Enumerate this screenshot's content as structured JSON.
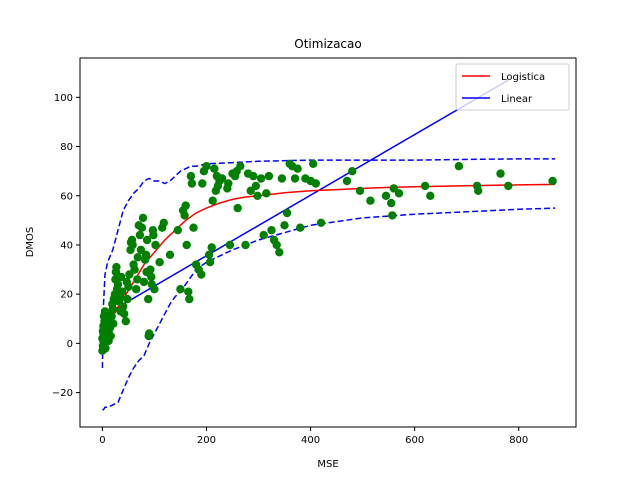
{
  "chart_data": {
    "type": "scatter",
    "title": "Otimizacao",
    "xlabel": "MSE",
    "ylabel": "DMOS",
    "xlim": [
      -43,
      910
    ],
    "ylim": [
      -34,
      116
    ],
    "xticks": [
      0,
      200,
      400,
      600,
      800
    ],
    "yticks": [
      -20,
      0,
      20,
      40,
      60,
      80,
      100
    ],
    "legend_position": "top-right",
    "legend": [
      {
        "label": "Logistica",
        "color": "#ff0000",
        "style": "solid"
      },
      {
        "label": "Linear",
        "color": "#0000ff",
        "style": "solid"
      }
    ],
    "colors": {
      "points": "#008000",
      "logistic": "#ff0000",
      "linear": "#0000ff",
      "bounds": "#0000ff"
    },
    "scatter_points": [
      [
        0,
        -3
      ],
      [
        1,
        -1
      ],
      [
        2,
        1
      ],
      [
        3,
        3
      ],
      [
        1,
        5
      ],
      [
        2,
        7
      ],
      [
        4,
        9
      ],
      [
        3,
        11
      ],
      [
        5,
        13
      ],
      [
        0,
        2
      ],
      [
        2,
        4
      ],
      [
        6,
        6
      ],
      [
        7,
        8
      ],
      [
        8,
        10
      ],
      [
        4,
        0
      ],
      [
        6,
        -2
      ],
      [
        9,
        2
      ],
      [
        10,
        5
      ],
      [
        11,
        12
      ],
      [
        12,
        1
      ],
      [
        14,
        6
      ],
      [
        15,
        9
      ],
      [
        16,
        3
      ],
      [
        18,
        11
      ],
      [
        20,
        14
      ],
      [
        19,
        16
      ],
      [
        21,
        8
      ],
      [
        22,
        18
      ],
      [
        24,
        20
      ],
      [
        25,
        26
      ],
      [
        26,
        29
      ],
      [
        27,
        31
      ],
      [
        28,
        22
      ],
      [
        30,
        24
      ],
      [
        32,
        17
      ],
      [
        34,
        19
      ],
      [
        35,
        13
      ],
      [
        36,
        27
      ],
      [
        38,
        21
      ],
      [
        40,
        15
      ],
      [
        42,
        12
      ],
      [
        45,
        9
      ],
      [
        47,
        25
      ],
      [
        48,
        18
      ],
      [
        50,
        23
      ],
      [
        52,
        28
      ],
      [
        54,
        38
      ],
      [
        55,
        41
      ],
      [
        57,
        42
      ],
      [
        58,
        40
      ],
      [
        60,
        32
      ],
      [
        62,
        30
      ],
      [
        65,
        22
      ],
      [
        67,
        26
      ],
      [
        68,
        35
      ],
      [
        70,
        48
      ],
      [
        72,
        44
      ],
      [
        74,
        38
      ],
      [
        76,
        47
      ],
      [
        78,
        51
      ],
      [
        80,
        25
      ],
      [
        82,
        34
      ],
      [
        84,
        36
      ],
      [
        85,
        29
      ],
      [
        86,
        42
      ],
      [
        88,
        18
      ],
      [
        89,
        3
      ],
      [
        90,
        4
      ],
      [
        92,
        30
      ],
      [
        94,
        27
      ],
      [
        95,
        24
      ],
      [
        97,
        46
      ],
      [
        98,
        44
      ],
      [
        100,
        22
      ],
      [
        102,
        40
      ],
      [
        110,
        33
      ],
      [
        115,
        47
      ],
      [
        118,
        49
      ],
      [
        130,
        36
      ],
      [
        145,
        46
      ],
      [
        150,
        22
      ],
      [
        155,
        54
      ],
      [
        158,
        52
      ],
      [
        160,
        56
      ],
      [
        162,
        40
      ],
      [
        165,
        21
      ],
      [
        167,
        18
      ],
      [
        170,
        68
      ],
      [
        172,
        65
      ],
      [
        175,
        47
      ],
      [
        180,
        32
      ],
      [
        185,
        30
      ],
      [
        190,
        28
      ],
      [
        192,
        65
      ],
      [
        195,
        70
      ],
      [
        200,
        72
      ],
      [
        205,
        36
      ],
      [
        207,
        33
      ],
      [
        210,
        39
      ],
      [
        212,
        58
      ],
      [
        215,
        71
      ],
      [
        218,
        62
      ],
      [
        220,
        68
      ],
      [
        222,
        64
      ],
      [
        225,
        66
      ],
      [
        230,
        67
      ],
      [
        240,
        63
      ],
      [
        242,
        65
      ],
      [
        245,
        40
      ],
      [
        250,
        69
      ],
      [
        255,
        68
      ],
      [
        258,
        70
      ],
      [
        260,
        55
      ],
      [
        265,
        72
      ],
      [
        275,
        40
      ],
      [
        280,
        69
      ],
      [
        285,
        62
      ],
      [
        290,
        68
      ],
      [
        295,
        64
      ],
      [
        298,
        60
      ],
      [
        305,
        67
      ],
      [
        310,
        44
      ],
      [
        315,
        61
      ],
      [
        320,
        68
      ],
      [
        325,
        46
      ],
      [
        330,
        42
      ],
      [
        335,
        40
      ],
      [
        340,
        37
      ],
      [
        345,
        67
      ],
      [
        350,
        48
      ],
      [
        355,
        53
      ],
      [
        360,
        73
      ],
      [
        365,
        72
      ],
      [
        370,
        67
      ],
      [
        375,
        71
      ],
      [
        380,
        47
      ],
      [
        390,
        67
      ],
      [
        400,
        66
      ],
      [
        405,
        73
      ],
      [
        410,
        65
      ],
      [
        420,
        49
      ],
      [
        470,
        66
      ],
      [
        480,
        70
      ],
      [
        495,
        62
      ],
      [
        515,
        58
      ],
      [
        545,
        60
      ],
      [
        555,
        57
      ],
      [
        557,
        52
      ],
      [
        560,
        63
      ],
      [
        570,
        61
      ],
      [
        620,
        64
      ],
      [
        630,
        60
      ],
      [
        685,
        72
      ],
      [
        720,
        64
      ],
      [
        722,
        62
      ],
      [
        765,
        69
      ],
      [
        780,
        64
      ],
      [
        865,
        66
      ]
    ],
    "logistic_fit": {
      "x": [
        0,
        20,
        40,
        60,
        80,
        100,
        120,
        140,
        160,
        180,
        200,
        225,
        250,
        275,
        300,
        350,
        400,
        450,
        500,
        550,
        600,
        700,
        800,
        870
      ],
      "y": [
        2,
        11,
        18,
        25,
        32,
        37,
        42,
        46,
        50,
        53,
        55,
        57,
        58.5,
        59.5,
        60,
        61.2,
        62,
        62.5,
        63,
        63.4,
        63.7,
        64.1,
        64.4,
        64.6
      ]
    },
    "linear_fit": {
      "x": [
        0,
        780
      ],
      "y": [
        11,
        107
      ]
    },
    "upper_bound": {
      "x": [
        0,
        2,
        5,
        10,
        20,
        30,
        40,
        50,
        60,
        70,
        80,
        90,
        100,
        110,
        120,
        130,
        140,
        150,
        160,
        170,
        180,
        200,
        250,
        300,
        400,
        500,
        600,
        700,
        800,
        870
      ],
      "y": [
        -10,
        15,
        28,
        33,
        38,
        46,
        54,
        58,
        61,
        63,
        66,
        67,
        66,
        66,
        65,
        66,
        68,
        70,
        71,
        72,
        72,
        73,
        73.5,
        74,
        74.5,
        74.5,
        74.5,
        74.8,
        75,
        75
      ]
    },
    "lower_bound": {
      "x": [
        0,
        2,
        5,
        10,
        20,
        30,
        40,
        50,
        60,
        70,
        80,
        90,
        100,
        110,
        120,
        130,
        140,
        150,
        160,
        170,
        180,
        200,
        250,
        300,
        400,
        500,
        600,
        700,
        800,
        870
      ],
      "y": [
        -27,
        -27,
        -26,
        -26,
        -25,
        -24,
        -19,
        -14,
        -10,
        -7,
        -5,
        0,
        4,
        8,
        12,
        16,
        19,
        21,
        24,
        27,
        30,
        33,
        38,
        42,
        48,
        51,
        52.5,
        53.5,
        54.5,
        55
      ]
    }
  }
}
